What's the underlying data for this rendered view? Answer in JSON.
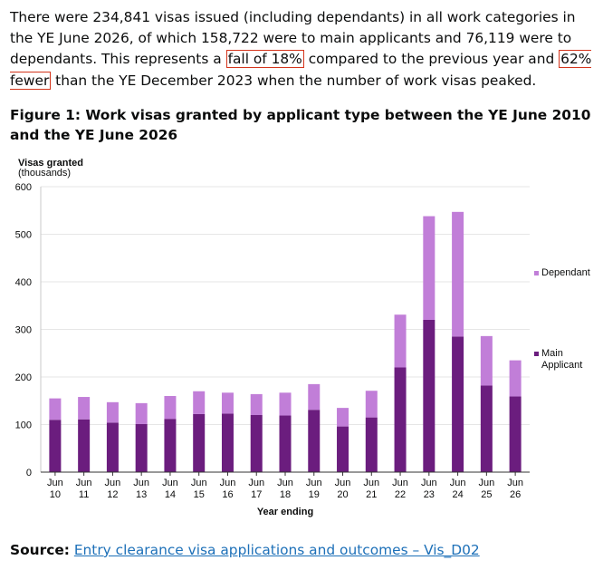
{
  "intro": {
    "p1": "There were 234,841 visas issued (including dependants) in all work categories in the YE June 2026, of which 158,722 were to main applicants and 76,119 were to dependants. This represents a ",
    "hl1": "fall of 18%",
    "p2": " compared to the previous year and ",
    "hl2": "62% fewer",
    "p3": " than the YE December 2023 when the number of work visas peaked."
  },
  "figure_title": "Figure 1: Work visas granted by applicant type between the YE June 2010 and the YE June 2026",
  "source": {
    "label": "Source:",
    "link_text": "Entry clearance visa applications and outcomes – Vis_D02"
  },
  "chart_data": {
    "type": "bar",
    "stacked": true,
    "ylabel_line1": "Visas granted",
    "ylabel_line2": "(thousands)",
    "xlabel": "Year ending",
    "ylim": [
      0,
      600
    ],
    "yticks": [
      0,
      100,
      200,
      300,
      400,
      500,
      600
    ],
    "grid": true,
    "legend_position": "right",
    "categories": [
      [
        "Jun",
        "10"
      ],
      [
        "Jun",
        "11"
      ],
      [
        "Jun",
        "12"
      ],
      [
        "Jun",
        "13"
      ],
      [
        "Jun",
        "14"
      ],
      [
        "Jun",
        "15"
      ],
      [
        "Jun",
        "16"
      ],
      [
        "Jun",
        "17"
      ],
      [
        "Jun",
        "18"
      ],
      [
        "Jun",
        "19"
      ],
      [
        "Jun",
        "20"
      ],
      [
        "Jun",
        "21"
      ],
      [
        "Jun",
        "22"
      ],
      [
        "Jun",
        "23"
      ],
      [
        "Jun",
        "24"
      ],
      [
        "Jun",
        "25"
      ],
      [
        "Jun",
        "26"
      ]
    ],
    "series": [
      {
        "name": "Main Applicant",
        "legend_lines": [
          "Main",
          "Applicant"
        ],
        "color": "#6b1d7e",
        "values": [
          110,
          111,
          104,
          101,
          112,
          122,
          123,
          120,
          119,
          131,
          96,
          115,
          220,
          320,
          285,
          182,
          159
        ]
      },
      {
        "name": "Dependant",
        "legend_lines": [
          "Dependant"
        ],
        "color": "#c17ed8",
        "values": [
          45,
          47,
          43,
          44,
          48,
          48,
          44,
          44,
          48,
          54,
          39,
          56,
          111,
          218,
          262,
          104,
          76
        ]
      }
    ]
  }
}
